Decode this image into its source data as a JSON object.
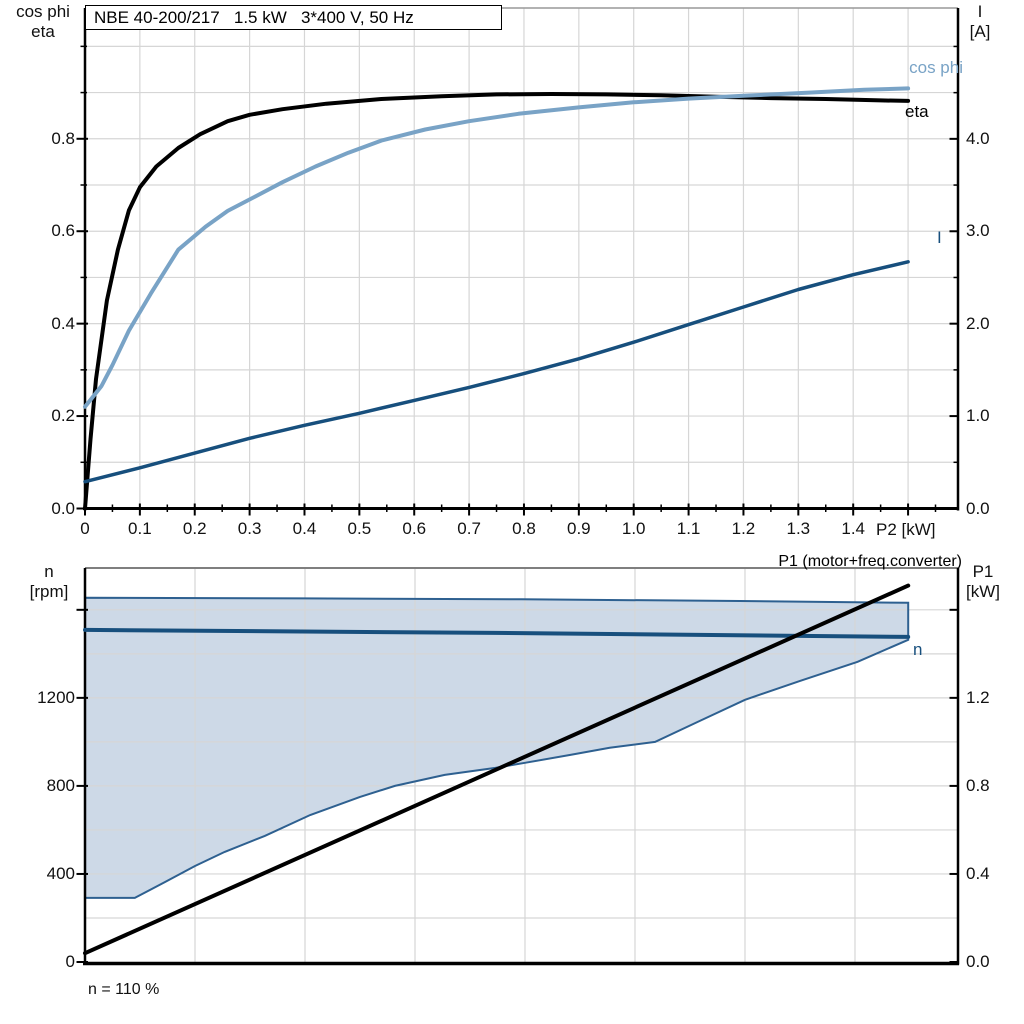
{
  "colors": {
    "eta": "#000000",
    "cos_phi": "#79a3c6",
    "current": "#174f7d",
    "speed": "#174f7d",
    "p1": "#000000",
    "region_fill": "#cdd9e7",
    "region_edge": "#2e6090",
    "grid": "#d6d6d6",
    "axis": "#000000",
    "frame_top": "#7f7f7f"
  },
  "chart_data": [
    {
      "type": "line",
      "title": "NBE 40-200/217   1.5 kW   3*400 V, 50 Hz",
      "xlabel": "P2 [kW]",
      "axis_left_title_line1": "cos phi",
      "axis_left_title_line2": "eta",
      "axis_right_title_line1": "I",
      "axis_right_title_line2": "[A]",
      "xlim": [
        0,
        1.591
      ],
      "x_tick_values": [
        0,
        0.1,
        0.2,
        0.3,
        0.4,
        0.5,
        0.6,
        0.7,
        0.8,
        0.9,
        1.0,
        1.1,
        1.2,
        1.3,
        1.4,
        1.5
      ],
      "x_tick_labels": [
        "0",
        "0.1",
        "0.2",
        "0.3",
        "0.4",
        "0.5",
        "0.6",
        "0.7",
        "0.8",
        "0.9",
        "1.0",
        "1.1",
        "1.2",
        "1.3",
        "1.4",
        ""
      ],
      "x_minor_step": 0.05,
      "x_grid": {
        "from": 0.1,
        "to": 1.5,
        "step": 0.1
      },
      "ylim_left": [
        0,
        1.083
      ],
      "y_left_tick_values": [
        0,
        0.2,
        0.4,
        0.6,
        0.8
      ],
      "y_left_tick_labels": [
        "0.0",
        "0.2",
        "0.4",
        "0.6",
        "0.8"
      ],
      "y_left_minor_values": [
        0.1,
        0.3,
        0.5,
        0.7,
        0.9,
        1.0
      ],
      "y_grid_left": {
        "from": 0.1,
        "to": 1.0,
        "step": 0.1
      },
      "ylim_right": [
        0,
        5.416
      ],
      "y_right_tick_values": [
        0,
        1,
        2,
        3,
        4
      ],
      "y_right_tick_labels": [
        "0.0",
        "1.0",
        "2.0",
        "3.0",
        "4.0"
      ],
      "y_right_minor_values": [
        0.5,
        1.5,
        2.5,
        3.5,
        4.5,
        5.0
      ],
      "grid": true,
      "legend_position": "labels-at-line-ends",
      "series": [
        {
          "name": "eta",
          "axis": "left",
          "color_key": "eta",
          "width": 4,
          "points": [
            [
              0,
              0
            ],
            [
              0.01,
              0.15
            ],
            [
              0.02,
              0.28
            ],
            [
              0.04,
              0.45
            ],
            [
              0.06,
              0.56
            ],
            [
              0.08,
              0.645
            ],
            [
              0.1,
              0.695
            ],
            [
              0.13,
              0.74
            ],
            [
              0.17,
              0.78
            ],
            [
              0.21,
              0.81
            ],
            [
              0.26,
              0.838
            ],
            [
              0.3,
              0.852
            ],
            [
              0.36,
              0.864
            ],
            [
              0.44,
              0.876
            ],
            [
              0.54,
              0.886
            ],
            [
              0.65,
              0.892
            ],
            [
              0.75,
              0.896
            ],
            [
              0.85,
              0.897
            ],
            [
              0.95,
              0.896
            ],
            [
              1.05,
              0.894
            ],
            [
              1.15,
              0.891
            ],
            [
              1.25,
              0.888
            ],
            [
              1.35,
              0.886
            ],
            [
              1.45,
              0.883
            ],
            [
              1.5,
              0.882
            ]
          ]
        },
        {
          "name": "cos phi",
          "axis": "left",
          "color_key": "cos_phi",
          "width": 4,
          "points": [
            [
              0,
              0.22
            ],
            [
              0.01,
              0.235
            ],
            [
              0.03,
              0.265
            ],
            [
              0.05,
              0.31
            ],
            [
              0.08,
              0.385
            ],
            [
              0.12,
              0.465
            ],
            [
              0.17,
              0.56
            ],
            [
              0.22,
              0.61
            ],
            [
              0.26,
              0.644
            ],
            [
              0.31,
              0.675
            ],
            [
              0.36,
              0.706
            ],
            [
              0.42,
              0.74
            ],
            [
              0.48,
              0.77
            ],
            [
              0.54,
              0.796
            ],
            [
              0.62,
              0.82
            ],
            [
              0.7,
              0.838
            ],
            [
              0.79,
              0.854
            ],
            [
              0.9,
              0.868
            ],
            [
              1.0,
              0.879
            ],
            [
              1.1,
              0.887
            ],
            [
              1.2,
              0.893
            ],
            [
              1.32,
              0.9
            ],
            [
              1.42,
              0.906
            ],
            [
              1.5,
              0.909
            ]
          ]
        },
        {
          "name": "I",
          "axis": "right",
          "color_key": "current",
          "width": 3.5,
          "points": [
            [
              0,
              0.29
            ],
            [
              0.1,
              0.44
            ],
            [
              0.2,
              0.6
            ],
            [
              0.3,
              0.76
            ],
            [
              0.4,
              0.9
            ],
            [
              0.5,
              1.03
            ],
            [
              0.6,
              1.17
            ],
            [
              0.7,
              1.31
            ],
            [
              0.8,
              1.46
            ],
            [
              0.9,
              1.62
            ],
            [
              1.0,
              1.8
            ],
            [
              1.1,
              1.99
            ],
            [
              1.2,
              2.18
            ],
            [
              1.3,
              2.37
            ],
            [
              1.4,
              2.53
            ],
            [
              1.5,
              2.67
            ]
          ]
        }
      ]
    },
    {
      "type": "line+area",
      "xlabel": "",
      "axis_left_title_line1": "n",
      "axis_left_title_line2": "[rpm]",
      "axis_right_title_line1": "P1",
      "axis_right_title_line2": "[kW]",
      "annotation": "n = 110 %",
      "xlim": [
        0,
        1
      ],
      "x_grid": {
        "from": 0.126,
        "to": 0.944,
        "step": 0.126
      },
      "ylim_left": [
        0,
        1790
      ],
      "y_left_tick_values": [
        0,
        400,
        800,
        1200,
        1600
      ],
      "y_left_tick_labels": [
        "0",
        "400",
        "800",
        "1200",
        ""
      ],
      "y_grid_left": {
        "from": 200,
        "to": 1600,
        "step": 200
      },
      "ylim_right": [
        0,
        1.79
      ],
      "y_right_tick_values": [
        0,
        0.4,
        0.8,
        1.2,
        1.6
      ],
      "y_right_tick_labels": [
        "0.0",
        "0.4",
        "0.8",
        "1.2",
        ""
      ],
      "grid": true,
      "region": {
        "name": "speed-operating-range",
        "fill_key": "region_fill",
        "edge_key": "region_edge",
        "upper": [
          [
            0,
            1655
          ],
          [
            0.25,
            1652
          ],
          [
            0.5,
            1648
          ],
          [
            0.75,
            1640
          ],
          [
            0.943,
            1632
          ]
        ],
        "lower": [
          [
            0,
            291
          ],
          [
            0.057,
            291
          ],
          [
            0.092,
            364
          ],
          [
            0.126,
            436
          ],
          [
            0.16,
            500
          ],
          [
            0.206,
            573
          ],
          [
            0.258,
            668
          ],
          [
            0.315,
            750
          ],
          [
            0.355,
            800
          ],
          [
            0.412,
            850
          ],
          [
            0.47,
            882
          ],
          [
            0.504,
            905
          ],
          [
            0.556,
            941
          ],
          [
            0.601,
            973
          ],
          [
            0.653,
            1000
          ],
          [
            0.704,
            1095
          ],
          [
            0.756,
            1191
          ],
          [
            0.819,
            1277
          ],
          [
            0.885,
            1364
          ],
          [
            0.943,
            1464
          ]
        ]
      },
      "series": [
        {
          "name": "n",
          "axis": "left",
          "color_key": "speed",
          "width": 4,
          "points": [
            [
              0,
              1509
            ],
            [
              0.47,
              1495
            ],
            [
              0.943,
              1477
            ]
          ]
        },
        {
          "name": "P1 (motor+freq.converter)",
          "axis": "right",
          "color_key": "p1",
          "width": 4,
          "points": [
            [
              0,
              0.04
            ],
            [
              0.943,
              1.71
            ]
          ]
        }
      ]
    }
  ]
}
